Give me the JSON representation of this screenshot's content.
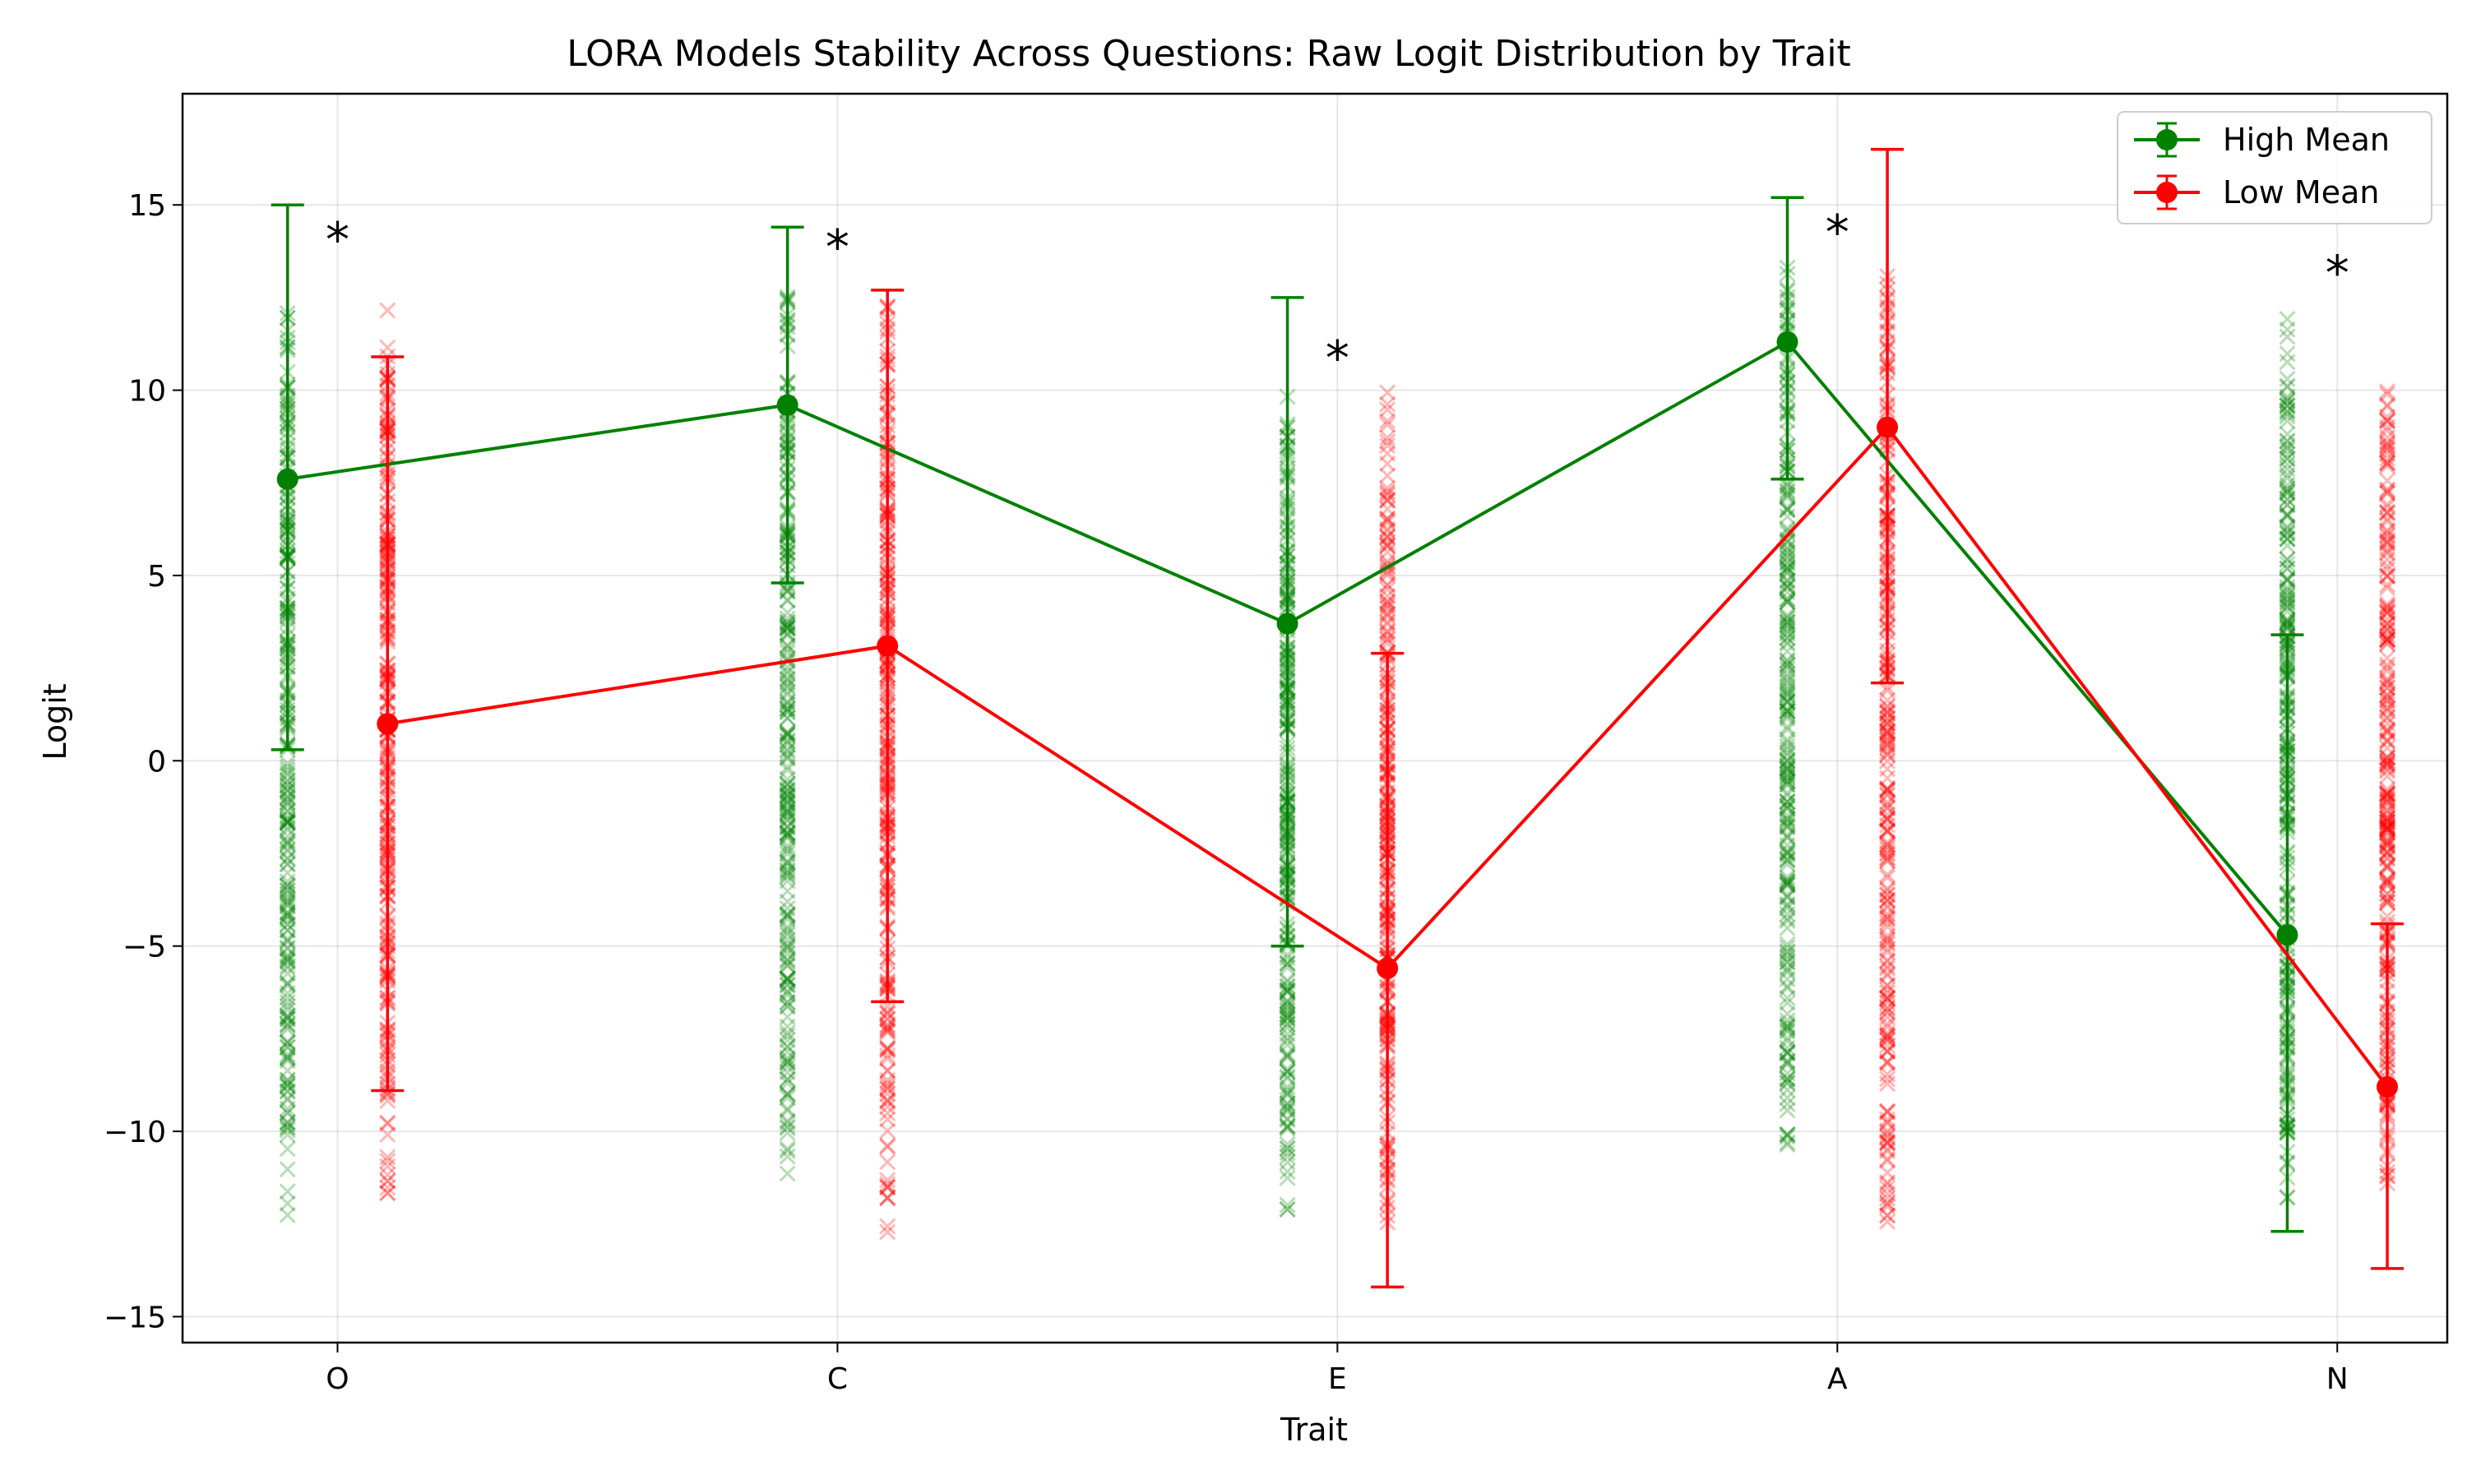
{
  "chart_data": {
    "type": "scatter",
    "title": "LORA Models Stability Across Questions: Raw Logit Distribution by Trait",
    "xlabel": "Trait",
    "ylabel": "Logit",
    "categories": [
      "O",
      "C",
      "E",
      "A",
      "N"
    ],
    "ylim": [
      -15.7,
      18.0
    ],
    "yticks": [
      -15,
      -10,
      -5,
      0,
      5,
      10,
      15
    ],
    "ytick_labels": [
      "−15",
      "−10",
      "−5",
      "0",
      "5",
      "10",
      "15"
    ],
    "grid": true,
    "legend_position": "top-right",
    "group_offset": 0.1,
    "colors": {
      "high": "#008000",
      "low": "#ff0000"
    },
    "series": [
      {
        "name": "High Mean",
        "key": "high",
        "means": [
          7.6,
          9.6,
          3.7,
          11.3,
          -4.7
        ],
        "err_low": [
          0.3,
          4.8,
          -5.0,
          7.6,
          -12.7
        ],
        "err_high": [
          15.0,
          14.4,
          12.5,
          15.2,
          3.4
        ]
      },
      {
        "name": "Low Mean",
        "key": "low",
        "means": [
          1.0,
          3.1,
          -5.6,
          9.0,
          -8.8
        ],
        "err_low": [
          -8.9,
          -6.5,
          -14.2,
          2.1,
          -13.7
        ],
        "err_high": [
          10.9,
          12.7,
          2.9,
          16.5,
          -4.4
        ]
      }
    ],
    "distribution_ranges": {
      "high": [
        [
          [
            -12.3,
            13.0
          ]
        ],
        [
          [
            -11.9,
            13.0
          ]
        ],
        [
          [
            -12.5,
            10.0
          ]
        ],
        [
          [
            -11.2,
            13.5
          ]
        ],
        [
          [
            -12.0,
            12.0
          ]
        ]
      ],
      "low": [
        [
          [
            -12.6,
            12.9
          ]
        ],
        [
          [
            -12.9,
            12.8
          ]
        ],
        [
          [
            -12.7,
            10.0
          ]
        ],
        [
          [
            -12.6,
            13.4
          ]
        ],
        [
          [
            -11.8,
            10.6
          ]
        ]
      ]
    },
    "significance_markers": [
      "*",
      "*",
      "*",
      "*",
      "*"
    ],
    "significance_y": [
      14.2,
      14.0,
      11.0,
      14.4,
      13.3
    ]
  }
}
